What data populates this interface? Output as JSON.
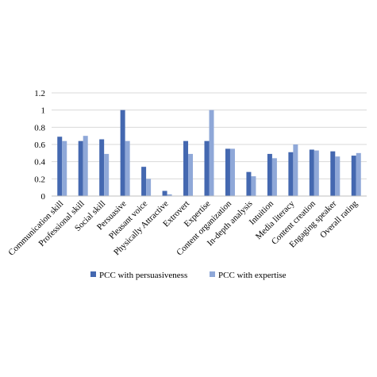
{
  "chart_data": {
    "type": "bar",
    "title": "",
    "xlabel": "",
    "ylabel": "",
    "ylim": [
      0,
      1.2
    ],
    "yticks": [
      "0",
      "0.2",
      "0.4",
      "0.6",
      "0.8",
      "1",
      "1.2"
    ],
    "grid": true,
    "legend_position": "bottom",
    "categories": [
      "Communication skill",
      "Professional skill",
      "Social skill",
      "Persuasive",
      "Pleasant voice",
      "Physically Attractive",
      "Extrovert",
      "Expertise",
      "Content organization",
      "In-depth analysis",
      "Intuition",
      "Media literacy",
      "Content creation",
      "Engaging speaker",
      "Overall rating"
    ],
    "series": [
      {
        "name": "PCC with persuasiveness",
        "color": "#4468b0",
        "values": [
          0.69,
          0.64,
          0.66,
          1.0,
          0.34,
          0.06,
          0.64,
          0.64,
          0.55,
          0.28,
          0.49,
          0.51,
          0.54,
          0.52,
          0.47
        ]
      },
      {
        "name": "PCC with expertise",
        "color": "#8fa8d8",
        "values": [
          0.64,
          0.7,
          0.49,
          0.64,
          0.2,
          0.02,
          0.49,
          1.0,
          0.55,
          0.23,
          0.44,
          0.6,
          0.53,
          0.46,
          0.5
        ]
      }
    ]
  }
}
